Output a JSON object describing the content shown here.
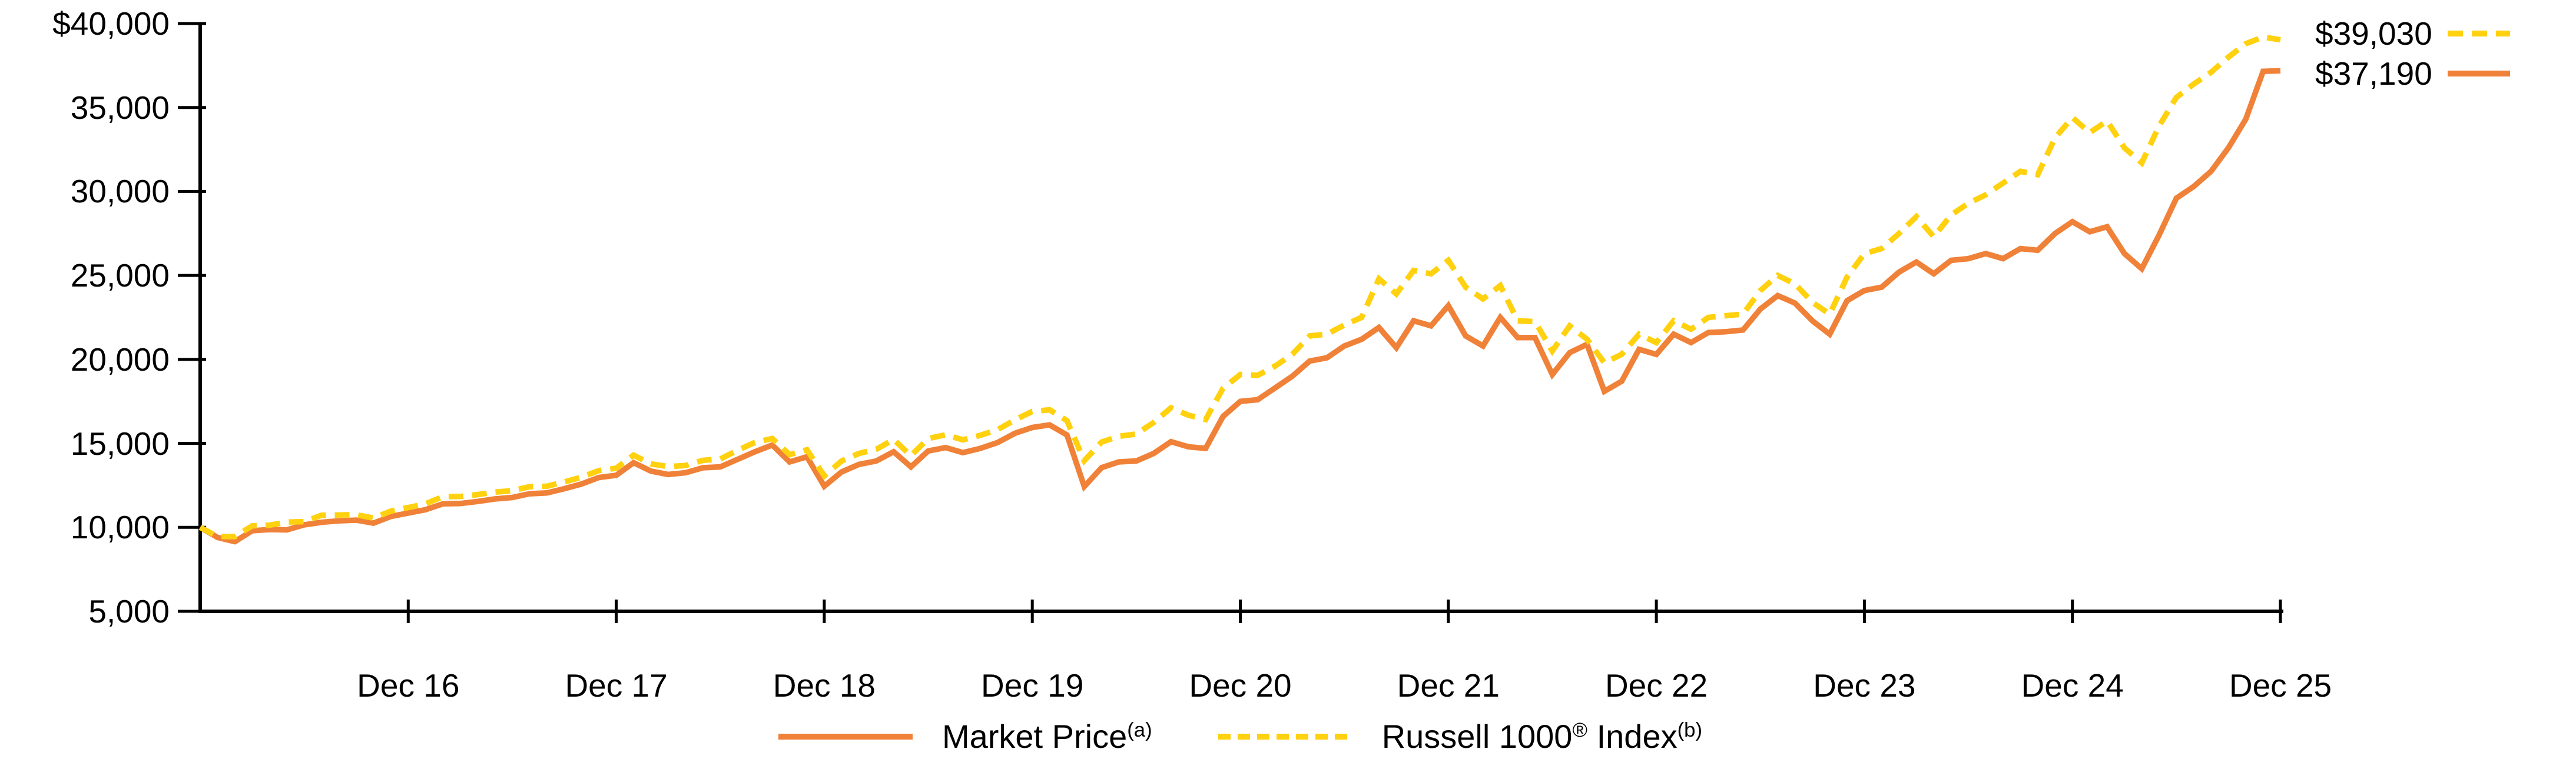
{
  "chart_data": {
    "type": "line",
    "title": "",
    "interval": "monthly",
    "grid": "off",
    "legend_position": "bottom-center",
    "x_axis": {
      "tick_labels": [
        "Dec 16",
        "Dec 17",
        "Dec 18",
        "Dec 19",
        "Dec 20",
        "Dec 21",
        "Dec 22",
        "Dec 23",
        "Dec 24",
        "Dec 25"
      ],
      "tick_month_indices": [
        12,
        24,
        36,
        48,
        60,
        72,
        84,
        96,
        108,
        120
      ]
    },
    "y_axis": {
      "tick_labels": [
        "$40,000",
        "35,000",
        "30,000",
        "25,000",
        "20,000",
        "15,000",
        "10,000",
        "5,000"
      ],
      "tick_values": [
        40000,
        35000,
        30000,
        25000,
        20000,
        15000,
        10000,
        5000
      ],
      "ylim": [
        5000,
        40000
      ]
    },
    "series": [
      {
        "name": "Market Price",
        "footnote_sup": "(a)",
        "style": "solid",
        "color": "#F08138",
        "end_label": "$37,190",
        "values": [
          10000,
          9400,
          9150,
          9800,
          9870,
          9850,
          10150,
          10300,
          10390,
          10430,
          10250,
          10650,
          10850,
          11050,
          11400,
          11420,
          11540,
          11690,
          11780,
          12000,
          12050,
          12300,
          12580,
          12970,
          13100,
          13850,
          13350,
          13150,
          13250,
          13550,
          13600,
          14050,
          14500,
          14900,
          13900,
          14200,
          12450,
          13300,
          13750,
          13950,
          14500,
          13600,
          14550,
          14750,
          14450,
          14700,
          15050,
          15600,
          15950,
          16100,
          15500,
          12430,
          13560,
          13900,
          13950,
          14400,
          15100,
          14800,
          14700,
          16600,
          17500,
          17600,
          18300,
          19000,
          19900,
          20100,
          20800,
          21200,
          21900,
          20700,
          22300,
          22000,
          23200,
          21400,
          20800,
          22500,
          21300,
          21300,
          19100,
          20400,
          20900,
          18100,
          18700,
          20600,
          20300,
          21500,
          21000,
          21600,
          21650,
          21750,
          23000,
          23800,
          23350,
          22300,
          21500,
          23500,
          24100,
          24300,
          25200,
          25800,
          25100,
          25900,
          26000,
          26300,
          26000,
          26600,
          26500,
          27500,
          28200,
          27600,
          27900,
          26300,
          25400,
          27400,
          29600,
          30300,
          31200,
          32600,
          34300,
          37150,
          37190
        ]
      },
      {
        "name": "Russell 1000 Index",
        "registered_mark": "®",
        "footnote_sup": "(b)",
        "style": "dashed",
        "color": "#FFD10E",
        "end_label": "$39,030",
        "values": [
          10000,
          9460,
          9450,
          10090,
          10130,
          10310,
          10340,
          10720,
          10740,
          10750,
          10550,
          10970,
          11180,
          11400,
          11830,
          11840,
          11950,
          12100,
          12180,
          12420,
          12450,
          12700,
          12990,
          13380,
          13520,
          14300,
          13780,
          13620,
          13680,
          13990,
          14070,
          14590,
          15060,
          15290,
          14330,
          14620,
          13060,
          13950,
          14400,
          14650,
          15230,
          14270,
          15290,
          15510,
          15210,
          15480,
          15820,
          16400,
          16900,
          17000,
          16350,
          13970,
          15080,
          15420,
          15560,
          16240,
          17120,
          16680,
          16420,
          18280,
          19100,
          19050,
          19600,
          20300,
          21400,
          21500,
          22050,
          22500,
          24800,
          23900,
          25300,
          25100,
          25900,
          24300,
          23600,
          24400,
          22300,
          22250,
          20500,
          22000,
          21200,
          19800,
          20300,
          21500,
          21000,
          22300,
          21800,
          22500,
          22600,
          22700,
          24100,
          25000,
          24500,
          23400,
          22700,
          24900,
          26300,
          26600,
          27500,
          28500,
          27300,
          28600,
          29300,
          29800,
          30500,
          31200,
          31000,
          33200,
          34400,
          33500,
          34200,
          32600,
          31700,
          33900,
          35600,
          36400,
          37100,
          38000,
          38800,
          39200,
          39030
        ]
      }
    ]
  },
  "end_labels": {
    "russell_value": "$39,030",
    "market_value": "$37,190"
  },
  "legend": {
    "market": {
      "label": "Market Price",
      "sup": "(a)"
    },
    "russell": {
      "label": "Russell 1000",
      "reg": "®",
      "label2": " Index",
      "sup": "(b)"
    }
  },
  "colors": {
    "market_price": "#F08138",
    "russell_index": "#FFD10E",
    "axis": "#000000",
    "text": "#000000"
  }
}
